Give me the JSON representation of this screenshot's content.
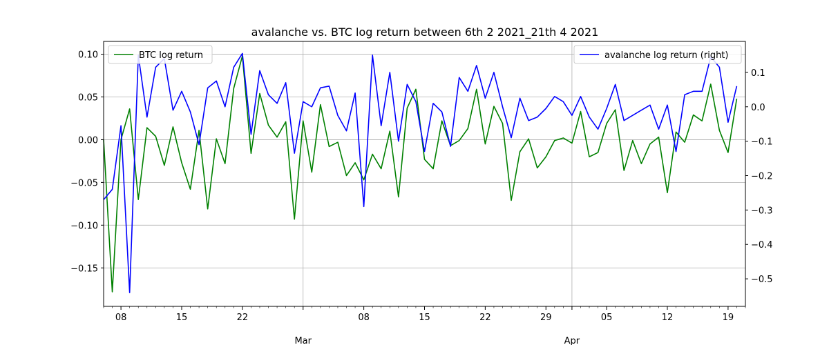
{
  "chart_data": {
    "type": "line",
    "title": "avalanche vs. BTC log return between 6th 2 2021_21th 4 2021",
    "x_start": "2021-02-06",
    "x_ticks": [
      {
        "date": "2021-02-08",
        "label": "08"
      },
      {
        "date": "2021-02-15",
        "label": "15"
      },
      {
        "date": "2021-02-22",
        "label": "22"
      },
      {
        "date": "2021-03-01",
        "label": ""
      },
      {
        "date": "2021-03-08",
        "label": "08"
      },
      {
        "date": "2021-03-15",
        "label": "15"
      },
      {
        "date": "2021-03-22",
        "label": "22"
      },
      {
        "date": "2021-03-29",
        "label": "29"
      },
      {
        "date": "2021-04-01",
        "label": ""
      },
      {
        "date": "2021-04-05",
        "label": "05"
      },
      {
        "date": "2021-04-12",
        "label": "12"
      },
      {
        "date": "2021-04-19",
        "label": "19"
      }
    ],
    "month_labels": [
      {
        "date": "2021-03-01",
        "label": "Mar"
      },
      {
        "date": "2021-04-01",
        "label": "Apr"
      }
    ],
    "xlim": [
      "2021-02-06",
      "2021-04-21"
    ],
    "left_axis": {
      "ylim": [
        -0.195,
        0.115
      ],
      "ticks": [
        0.1,
        0.05,
        0.0,
        -0.05,
        -0.1,
        -0.15
      ],
      "tick_labels": [
        "0.10",
        "0.05",
        "0.00",
        "−0.05",
        "−0.10",
        "−0.15"
      ]
    },
    "right_axis": {
      "ylim": [
        -0.58,
        0.19
      ],
      "ticks": [
        0.1,
        0.0,
        -0.1,
        -0.2,
        -0.3,
        -0.4,
        -0.5
      ],
      "tick_labels": [
        "0.1",
        "0.0",
        "−0.1",
        "−0.2",
        "−0.3",
        "−0.4",
        "−0.5"
      ]
    },
    "grid": true,
    "series": [
      {
        "name": "BTC log return",
        "axis": "left",
        "color": "#008000",
        "legend_position": "top-left",
        "values": [
          0.0,
          -0.178,
          0.0,
          0.036,
          -0.07,
          0.014,
          0.004,
          -0.03,
          0.015,
          -0.027,
          -0.058,
          0.011,
          -0.081,
          0.001,
          -0.028,
          0.06,
          0.098,
          -0.016,
          0.054,
          0.017,
          0.003,
          0.021,
          -0.093,
          0.022,
          -0.038,
          0.041,
          -0.008,
          -0.003,
          -0.042,
          -0.027,
          -0.047,
          -0.017,
          -0.034,
          0.01,
          -0.067,
          0.037,
          0.059,
          -0.023,
          -0.034,
          0.022,
          -0.007,
          -0.001,
          0.013,
          0.059,
          -0.005,
          0.039,
          0.019,
          -0.071,
          -0.014,
          0.001,
          -0.033,
          -0.02,
          -0.001,
          0.002,
          -0.004,
          0.033,
          -0.02,
          -0.015,
          0.019,
          0.035,
          -0.036,
          -0.001,
          -0.028,
          -0.005,
          0.003,
          -0.062,
          0.009,
          -0.003,
          0.029,
          0.022,
          0.065,
          0.011,
          -0.015,
          0.048
        ]
      },
      {
        "name": "avalanche log return (right)",
        "axis": "right",
        "color": "#0000ff",
        "legend_position": "top-right",
        "values": [
          -0.27,
          -0.24,
          -0.055,
          -0.54,
          0.15,
          -0.03,
          0.115,
          0.14,
          -0.01,
          0.045,
          -0.015,
          -0.11,
          0.055,
          0.075,
          0.0,
          0.115,
          0.155,
          -0.08,
          0.105,
          0.035,
          0.01,
          0.07,
          -0.135,
          0.015,
          0.0,
          0.055,
          0.06,
          -0.025,
          -0.07,
          0.04,
          -0.29,
          0.15,
          -0.055,
          0.1,
          -0.1,
          0.065,
          0.015,
          -0.13,
          0.01,
          -0.015,
          -0.115,
          0.085,
          0.045,
          0.12,
          0.025,
          0.1,
          0.0,
          -0.09,
          0.025,
          -0.04,
          -0.03,
          -0.005,
          0.03,
          0.015,
          -0.025,
          0.03,
          -0.03,
          -0.065,
          -0.005,
          0.065,
          -0.04,
          -0.025,
          -0.01,
          0.005,
          -0.065,
          0.005,
          -0.13,
          0.035,
          0.045,
          0.045,
          0.145,
          0.115,
          -0.045,
          0.06
        ]
      }
    ]
  }
}
